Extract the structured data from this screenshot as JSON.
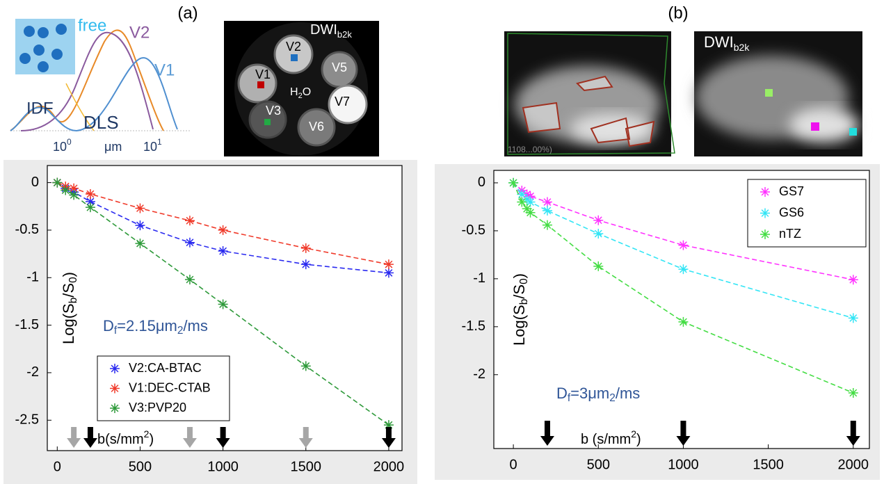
{
  "figure": {
    "panel_a": {
      "label": "(a)",
      "inset": {
        "free": "free",
        "v2": "V2",
        "v1": "V1",
        "idf": "IDF",
        "dls": "DLS",
        "tick_left": [
          "10",
          "0"
        ],
        "unit": "μm",
        "tick_right": [
          "10",
          "1"
        ]
      },
      "phantom": {
        "title": [
          "DWI",
          "b2k"
        ],
        "vials": [
          "V2",
          "V5",
          "V1",
          "V7",
          "V3",
          "V6"
        ],
        "water": [
          "H",
          "2",
          "O"
        ]
      }
    },
    "panel_b": {
      "label": "(b)",
      "overlay_text": "1108...00%)",
      "dwi_title": [
        "DWI",
        "b2k"
      ]
    }
  },
  "chart_data": [
    {
      "type": "line",
      "x": [
        0,
        50,
        100,
        200,
        500,
        800,
        1000,
        1500,
        2000
      ],
      "xlim": [
        -60,
        2080
      ],
      "ylim": [
        -2.82,
        0.18
      ],
      "xticks": [
        0,
        500,
        1000,
        1500,
        2000
      ],
      "yticks": [
        0,
        -0.5,
        -1,
        -1.5,
        -2,
        -2.5
      ],
      "ylabel": [
        "Log(S",
        "b",
        "/S",
        "0",
        ")"
      ],
      "xlabel": [
        "b(s/mm",
        "2",
        ")"
      ],
      "annotation": [
        "D",
        "f",
        "=2.15μm",
        "2",
        "/ms"
      ],
      "legend_loc": "lower left",
      "arrows": [
        {
          "color": "#a6a6a6",
          "x": [
            100,
            800,
            1500
          ]
        },
        {
          "color": "#000000",
          "x": [
            200,
            1000,
            2000
          ]
        }
      ],
      "series": [
        {
          "name": "V2:CA-BTAC",
          "color": "#2a2af0",
          "values": [
            0,
            -0.06,
            -0.1,
            -0.2,
            -0.45,
            -0.63,
            -0.72,
            -0.86,
            -0.95
          ]
        },
        {
          "name": "V1:DEC-CTAB",
          "color": "#f03a2a",
          "values": [
            0,
            -0.04,
            -0.06,
            -0.12,
            -0.27,
            -0.4,
            -0.5,
            -0.69,
            -0.86
          ]
        },
        {
          "name": "V3:PVP20",
          "color": "#2e9a3a",
          "values": [
            0,
            -0.08,
            -0.13,
            -0.26,
            -0.64,
            -1.02,
            -1.28,
            -1.93,
            -2.55
          ]
        }
      ]
    },
    {
      "type": "line",
      "x": [
        0,
        50,
        80,
        100,
        200,
        500,
        1000,
        2000
      ],
      "xlim": [
        -115,
        2095
      ],
      "ylim": [
        -2.77,
        0.13
      ],
      "xticks": [
        0,
        500,
        1000,
        1500,
        2000
      ],
      "yticks": [
        0,
        -0.5,
        -1,
        -1.5,
        -2
      ],
      "ylabel": [
        "Log(S",
        "b",
        "/S",
        "0",
        ")"
      ],
      "xlabel": [
        "b (s/mm",
        "2",
        ")"
      ],
      "annotation": [
        "D",
        "f",
        "=3μm",
        "2",
        "/ms"
      ],
      "legend_loc": "upper right",
      "arrows": [
        {
          "color": "#000000",
          "x": [
            200,
            1000,
            2000
          ]
        }
      ],
      "series": [
        {
          "name": "GS7",
          "color": "#ff33ff",
          "values": [
            0,
            -0.08,
            -0.12,
            -0.14,
            -0.2,
            -0.39,
            -0.65,
            -1.01
          ]
        },
        {
          "name": "GS6",
          "color": "#33e5f5",
          "values": [
            0,
            -0.12,
            -0.17,
            -0.2,
            -0.29,
            -0.53,
            -0.9,
            -1.41
          ]
        },
        {
          "name": "nTZ",
          "color": "#44dd44",
          "values": [
            0,
            -0.2,
            -0.27,
            -0.31,
            -0.44,
            -0.87,
            -1.45,
            -2.19
          ]
        }
      ]
    }
  ]
}
